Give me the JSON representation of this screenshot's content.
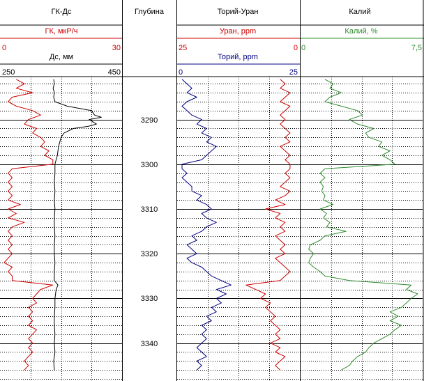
{
  "colors": {
    "grid": "#000000",
    "gamma": "#cc0000",
    "caliper": "#000000",
    "uranium": "#cc0000",
    "thorium": "#000080",
    "potassium": "#2e8b2e"
  },
  "tracks": {
    "gk_ds": {
      "title": "ГК-Дс",
      "curve1": {
        "name": "ГК, мкР/ч",
        "min": "0",
        "max": "30"
      },
      "curve2": {
        "name": "Дс, мм",
        "min": "250",
        "max": "450"
      }
    },
    "depth": {
      "title": "Глубина"
    },
    "th_u": {
      "title": "Торий-Уран",
      "curve1": {
        "name": "Уран, ppm",
        "min": "25",
        "max": "0"
      },
      "curve2": {
        "name": "Торий, ppm",
        "min": "0",
        "max": "25"
      }
    },
    "k": {
      "title": "Калий",
      "curve1": {
        "name": "Калий, %",
        "min": "0",
        "max": "7,5"
      }
    }
  },
  "depth_labels": [
    "3290",
    "3300",
    "3310",
    "3320",
    "3330",
    "3340"
  ],
  "chart_data": {
    "type": "line",
    "title": "",
    "depth_range": [
      3280,
      3348
    ],
    "depth_unit": "m",
    "major_depth_step": 10,
    "minor_depth_step": 2,
    "series": [
      {
        "name": "ГК, мкР/ч",
        "track": "gk_ds",
        "scale": [
          0,
          30
        ],
        "color": "gamma",
        "points": [
          [
            3281,
            4
          ],
          [
            3282,
            6
          ],
          [
            3283,
            4
          ],
          [
            3284,
            8
          ],
          [
            3285,
            3
          ],
          [
            3286,
            2
          ],
          [
            3287,
            4
          ],
          [
            3288,
            8
          ],
          [
            3289,
            10
          ],
          [
            3290,
            7
          ],
          [
            3291,
            6
          ],
          [
            3292,
            9
          ],
          [
            3293,
            8
          ],
          [
            3294,
            10
          ],
          [
            3295,
            11
          ],
          [
            3296,
            10
          ],
          [
            3297,
            12
          ],
          [
            3298,
            11
          ],
          [
            3299,
            13
          ],
          [
            3300,
            13
          ],
          [
            3301,
            3
          ],
          [
            3302,
            2
          ],
          [
            3303,
            3
          ],
          [
            3304,
            2
          ],
          [
            3305,
            3
          ],
          [
            3306,
            2
          ],
          [
            3307,
            3
          ],
          [
            3308,
            2
          ],
          [
            3309,
            5
          ],
          [
            3310,
            2
          ],
          [
            3311,
            4
          ],
          [
            3312,
            2
          ],
          [
            3313,
            6
          ],
          [
            3314,
            3
          ],
          [
            3315,
            2
          ],
          [
            3316,
            3
          ],
          [
            3317,
            2
          ],
          [
            3318,
            3
          ],
          [
            3319,
            2
          ],
          [
            3320,
            3
          ],
          [
            3321,
            2
          ],
          [
            3322,
            1
          ],
          [
            3323,
            3
          ],
          [
            3324,
            2
          ],
          [
            3325,
            3
          ],
          [
            3326,
            3
          ],
          [
            3327,
            13
          ],
          [
            3328,
            10
          ],
          [
            3329,
            9
          ],
          [
            3330,
            8
          ],
          [
            3331,
            9
          ],
          [
            3332,
            7
          ],
          [
            3333,
            8
          ],
          [
            3334,
            7
          ],
          [
            3335,
            8
          ],
          [
            3336,
            7
          ],
          [
            3337,
            9
          ],
          [
            3338,
            8
          ],
          [
            3339,
            7
          ],
          [
            3340,
            8
          ],
          [
            3341,
            7
          ],
          [
            3342,
            8
          ],
          [
            3343,
            7
          ],
          [
            3344,
            6
          ],
          [
            3345,
            7
          ],
          [
            3346,
            6
          ]
        ]
      },
      {
        "name": "Дс, мм",
        "track": "gk_ds",
        "scale": [
          250,
          450
        ],
        "color": "caliper",
        "points": [
          [
            3281,
            338
          ],
          [
            3282,
            339
          ],
          [
            3283,
            337
          ],
          [
            3284,
            339
          ],
          [
            3285,
            338
          ],
          [
            3286,
            340
          ],
          [
            3287,
            360
          ],
          [
            3288,
            400
          ],
          [
            3289,
            405
          ],
          [
            3289.5,
            416
          ],
          [
            3290,
            396
          ],
          [
            3291,
            408
          ],
          [
            3291.5,
            395
          ],
          [
            3292,
            370
          ],
          [
            3293,
            355
          ],
          [
            3294,
            350
          ],
          [
            3295,
            348
          ],
          [
            3296,
            346
          ],
          [
            3297,
            345
          ],
          [
            3298,
            344
          ],
          [
            3299,
            342
          ],
          [
            3300,
            340
          ],
          [
            3302,
            340
          ],
          [
            3304,
            339
          ],
          [
            3306,
            340
          ],
          [
            3308,
            339
          ],
          [
            3310,
            340
          ],
          [
            3312,
            339
          ],
          [
            3314,
            339
          ],
          [
            3316,
            340
          ],
          [
            3318,
            339
          ],
          [
            3320,
            339
          ],
          [
            3322,
            340
          ],
          [
            3324,
            339
          ],
          [
            3326,
            339
          ],
          [
            3327,
            345
          ],
          [
            3328,
            342
          ],
          [
            3330,
            340
          ],
          [
            3332,
            340
          ],
          [
            3334,
            339
          ],
          [
            3336,
            339
          ],
          [
            3338,
            340
          ],
          [
            3340,
            339
          ],
          [
            3342,
            340
          ],
          [
            3344,
            338
          ],
          [
            3346,
            339
          ]
        ]
      },
      {
        "name": "Уран, ppm",
        "track": "th_u",
        "scale": [
          25,
          0
        ],
        "color": "uranium",
        "points": [
          [
            3281,
            4
          ],
          [
            3282,
            3
          ],
          [
            3283,
            4
          ],
          [
            3284,
            2
          ],
          [
            3285,
            3
          ],
          [
            3286,
            4
          ],
          [
            3287,
            2
          ],
          [
            3288,
            3
          ],
          [
            3289,
            4
          ],
          [
            3290,
            3
          ],
          [
            3291,
            4
          ],
          [
            3292,
            3
          ],
          [
            3293,
            2
          ],
          [
            3294,
            3
          ],
          [
            3295,
            2
          ],
          [
            3296,
            4
          ],
          [
            3297,
            3
          ],
          [
            3298,
            2
          ],
          [
            3299,
            3
          ],
          [
            3300,
            2
          ],
          [
            3301,
            2
          ],
          [
            3302,
            3
          ],
          [
            3303,
            2
          ],
          [
            3304,
            3
          ],
          [
            3305,
            4
          ],
          [
            3306,
            2
          ],
          [
            3307,
            3
          ],
          [
            3308,
            5
          ],
          [
            3309,
            3
          ],
          [
            3310,
            7
          ],
          [
            3311,
            4
          ],
          [
            3312,
            5
          ],
          [
            3313,
            3
          ],
          [
            3314,
            4
          ],
          [
            3315,
            3
          ],
          [
            3316,
            5
          ],
          [
            3317,
            4
          ],
          [
            3318,
            3
          ],
          [
            3319,
            4
          ],
          [
            3320,
            3
          ],
          [
            3321,
            5
          ],
          [
            3322,
            4
          ],
          [
            3323,
            3
          ],
          [
            3324,
            2
          ],
          [
            3325,
            3
          ],
          [
            3326,
            4
          ],
          [
            3327,
            11
          ],
          [
            3328,
            9
          ],
          [
            3329,
            7
          ],
          [
            3330,
            8
          ],
          [
            3331,
            6
          ],
          [
            3332,
            7
          ],
          [
            3333,
            6
          ],
          [
            3334,
            5
          ],
          [
            3335,
            6
          ],
          [
            3336,
            5
          ],
          [
            3337,
            4
          ],
          [
            3338,
            5
          ],
          [
            3339,
            4
          ],
          [
            3340,
            6
          ],
          [
            3341,
            4
          ],
          [
            3342,
            5
          ],
          [
            3343,
            3
          ],
          [
            3344,
            4
          ],
          [
            3345,
            5
          ],
          [
            3346,
            4
          ]
        ]
      },
      {
        "name": "Торий, ppm",
        "track": "th_u",
        "scale": [
          0,
          25
        ],
        "color": "thorium",
        "points": [
          [
            3281,
            1
          ],
          [
            3282,
            2
          ],
          [
            3283,
            3
          ],
          [
            3284,
            2
          ],
          [
            3285,
            4
          ],
          [
            3286,
            2
          ],
          [
            3287,
            1
          ],
          [
            3288,
            2
          ],
          [
            3289,
            3
          ],
          [
            3290,
            5
          ],
          [
            3291,
            4
          ],
          [
            3292,
            6
          ],
          [
            3293,
            5
          ],
          [
            3294,
            7
          ],
          [
            3295,
            6
          ],
          [
            3296,
            8
          ],
          [
            3297,
            7
          ],
          [
            3298,
            6
          ],
          [
            3299,
            5
          ],
          [
            3300,
            1
          ],
          [
            3301,
            1
          ],
          [
            3302,
            2
          ],
          [
            3303,
            1
          ],
          [
            3304,
            2
          ],
          [
            3305,
            3
          ],
          [
            3306,
            3
          ],
          [
            3307,
            5
          ],
          [
            3308,
            4
          ],
          [
            3309,
            6
          ],
          [
            3310,
            7
          ],
          [
            3311,
            5
          ],
          [
            3312,
            6
          ],
          [
            3313,
            8
          ],
          [
            3314,
            6
          ],
          [
            3315,
            5
          ],
          [
            3316,
            3
          ],
          [
            3317,
            4
          ],
          [
            3318,
            2
          ],
          [
            3319,
            3
          ],
          [
            3320,
            4
          ],
          [
            3321,
            2
          ],
          [
            3322,
            3
          ],
          [
            3323,
            5
          ],
          [
            3324,
            6
          ],
          [
            3325,
            7
          ],
          [
            3326,
            9
          ],
          [
            3327,
            11
          ],
          [
            3328,
            8
          ],
          [
            3329,
            10
          ],
          [
            3330,
            8
          ],
          [
            3331,
            9
          ],
          [
            3332,
            7
          ],
          [
            3333,
            8
          ],
          [
            3334,
            6
          ],
          [
            3335,
            7
          ],
          [
            3336,
            5
          ],
          [
            3337,
            6
          ],
          [
            3338,
            5
          ],
          [
            3339,
            6
          ],
          [
            3340,
            5
          ],
          [
            3341,
            4
          ],
          [
            3342,
            5
          ],
          [
            3343,
            6
          ],
          [
            3344,
            4
          ],
          [
            3345,
            5
          ],
          [
            3346,
            4
          ]
        ]
      },
      {
        "name": "Калий, %",
        "track": "k",
        "scale": [
          0,
          7.5
        ],
        "color": "potassium",
        "points": [
          [
            3281,
            1.5
          ],
          [
            3282,
            2
          ],
          [
            3283,
            1.8
          ],
          [
            3284,
            2.5
          ],
          [
            3285,
            1.8
          ],
          [
            3286,
            1.5
          ],
          [
            3287,
            2.5
          ],
          [
            3288,
            3.5
          ],
          [
            3289,
            3.8
          ],
          [
            3290,
            3
          ],
          [
            3291,
            3.5
          ],
          [
            3292,
            4.5
          ],
          [
            3293,
            4
          ],
          [
            3294,
            4.2
          ],
          [
            3295,
            5
          ],
          [
            3296,
            4.8
          ],
          [
            3297,
            5.5
          ],
          [
            3298,
            5
          ],
          [
            3299,
            5.5
          ],
          [
            3300,
            5.8
          ],
          [
            3301,
            1.5
          ],
          [
            3302,
            1.2
          ],
          [
            3303,
            1.5
          ],
          [
            3304,
            1.2
          ],
          [
            3305,
            1.4
          ],
          [
            3306,
            1.3
          ],
          [
            3307,
            1.5
          ],
          [
            3308,
            1.4
          ],
          [
            3309,
            2
          ],
          [
            3310,
            1.2
          ],
          [
            3311,
            1.6
          ],
          [
            3312,
            1.4
          ],
          [
            3313,
            1.8
          ],
          [
            3314,
            1.6
          ],
          [
            3315,
            2.8
          ],
          [
            3316,
            1.5
          ],
          [
            3317,
            1.2
          ],
          [
            3318,
            0.6
          ],
          [
            3319,
            0.5
          ],
          [
            3320,
            0.8
          ],
          [
            3321,
            0.6
          ],
          [
            3322,
            0.5
          ],
          [
            3323,
            0.8
          ],
          [
            3324,
            1.2
          ],
          [
            3325,
            1.5
          ],
          [
            3326,
            3
          ],
          [
            3327,
            6.8
          ],
          [
            3328,
            6.5
          ],
          [
            3329,
            7.2
          ],
          [
            3330,
            6.8
          ],
          [
            3331,
            6.5
          ],
          [
            3332,
            6.2
          ],
          [
            3333,
            5.5
          ],
          [
            3334,
            6
          ],
          [
            3335,
            5.5
          ],
          [
            3336,
            6.2
          ],
          [
            3337,
            5.8
          ],
          [
            3338,
            5.5
          ],
          [
            3339,
            5
          ],
          [
            3340,
            4.5
          ],
          [
            3341,
            4.2
          ],
          [
            3342,
            4
          ],
          [
            3343,
            3.5
          ],
          [
            3344,
            3.2
          ],
          [
            3345,
            3
          ],
          [
            3346,
            2.5
          ]
        ]
      }
    ]
  }
}
